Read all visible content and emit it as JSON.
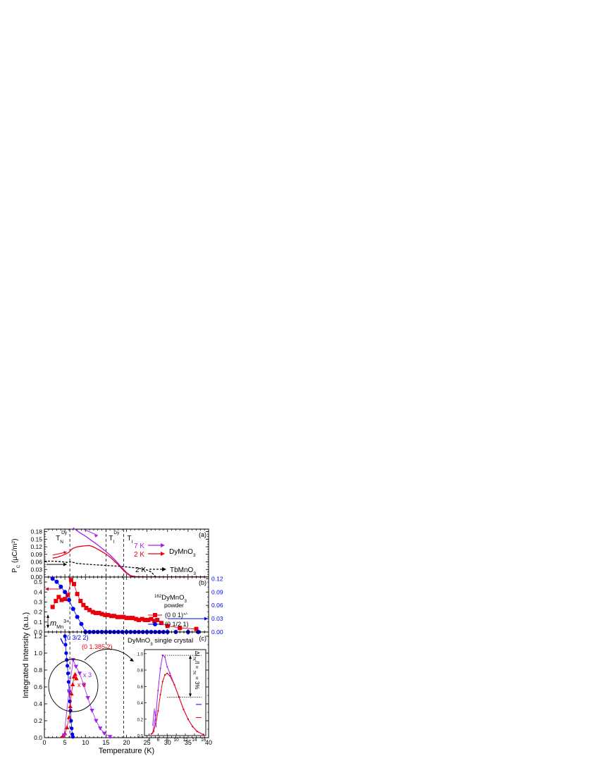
{
  "chart_data": [
    {
      "panel": "(a)",
      "type": "line",
      "ylabel": "P_C (μC/m²)",
      "ylim": [
        0,
        0.19
      ],
      "xlim": [
        0,
        40
      ],
      "yticks": [
        "0.00",
        "0.03",
        "0.06",
        "0.09",
        "0.12",
        "0.15",
        "0.18"
      ],
      "transition_labels": [
        {
          "main": "T",
          "sup": "Dy",
          "sub": "N",
          "x": 6.2
        },
        {
          "main": "T",
          "sup": "Dy",
          "sub": "I",
          "x": 15.0
        },
        {
          "main": "T",
          "sup": "",
          "sub": "I",
          "x": 19.3
        }
      ],
      "legend": [
        {
          "temp": "7 K",
          "compound": "DyMnO3",
          "color": "#a020f0"
        },
        {
          "temp": "2 K",
          "compound": "",
          "color": "#e8000b"
        },
        {
          "temp": "2 K",
          "compound": "TbMnO3",
          "color": "#000000",
          "dashed": true
        }
      ],
      "series": [
        {
          "name": "7 K",
          "color": "#a020f0",
          "x": [
            7.0,
            8.0,
            9.0,
            10.0,
            11.0,
            12.0,
            13.0,
            14.0,
            15.0,
            16.0,
            17.0,
            18.0,
            19.0,
            20.0,
            21.0,
            22.0,
            23.0,
            25.0,
            30.0,
            40.0
          ],
          "y": [
            0.195,
            0.183,
            0.172,
            0.162,
            0.15,
            0.139,
            0.127,
            0.114,
            0.101,
            0.087,
            0.071,
            0.053,
            0.035,
            0.018,
            0.006,
            0.002,
            0.001,
            0.0005,
            0.0003,
            0.0003
          ]
        },
        {
          "name": "2 K",
          "color": "#e8000b",
          "x": [
            2.0,
            3.0,
            4.0,
            5.0,
            6.0,
            6.5,
            7.0,
            8.0,
            9.0,
            10.0,
            11.0,
            12.0,
            13.0,
            14.0,
            15.0,
            16.0,
            17.0,
            18.0,
            19.0,
            20.0,
            21.0,
            22.0,
            25.0,
            30.0,
            40.0
          ],
          "y": [
            0.075,
            0.078,
            0.083,
            0.09,
            0.098,
            0.108,
            0.114,
            0.12,
            0.122,
            0.124,
            0.125,
            0.119,
            0.11,
            0.101,
            0.091,
            0.079,
            0.064,
            0.048,
            0.031,
            0.015,
            0.004,
            0.001,
            0.0003,
            0.0003,
            0.0003
          ]
        },
        {
          "name": "2 K TbMnO3",
          "color": "#000000",
          "x": [
            0.0,
            2.0,
            4.0,
            5.5,
            6.5,
            7.0,
            8.0,
            10.0,
            12.0,
            14.0,
            16.0,
            18.0,
            20.0,
            22.0,
            24.0,
            25.0,
            26.0,
            26.7,
            27.0
          ],
          "y": [
            0.063,
            0.063,
            0.061,
            0.058,
            0.06,
            0.058,
            0.054,
            0.051,
            0.049,
            0.047,
            0.045,
            0.043,
            0.04,
            0.037,
            0.032,
            0.028,
            0.02,
            0.008,
            0.002
          ]
        }
      ]
    },
    {
      "panel": "(b)",
      "type": "scatter",
      "ylim_left": [
        0,
        0.55
      ],
      "ylim_right": [
        0,
        0.1238
      ],
      "yticks_left": [
        "0.0",
        "0.1",
        "0.2",
        "0.3",
        "0.4",
        "0.5"
      ],
      "yticks_right": [
        "0.00",
        "0.03",
        "0.06",
        "0.09",
        "0.12"
      ],
      "annotation_title_sup": "162",
      "annotation_title": "DyMnO",
      "annotation_title_sub": "3",
      "annotation_subtitle": "powder",
      "moment_label": "m",
      "moment_sub": "Mn",
      "moment_sup": "3+",
      "series": [
        {
          "name": "(0 0 1)",
          "name_sup": "+/-",
          "color": "#e8000b",
          "marker": "square",
          "axis": "left",
          "x": [
            2.0,
            2.8,
            3.5,
            4.2,
            5.0,
            5.7,
            6.5,
            7.2,
            8.0,
            8.8,
            9.5,
            10.2,
            11.0,
            11.8,
            12.5,
            13.3,
            14.0,
            14.8,
            15.5,
            16.3,
            17.0,
            17.8,
            18.5,
            19.3,
            20.0,
            20.8,
            21.5,
            22.3,
            23.0,
            23.8,
            24.5,
            25.3,
            26.0,
            26.8,
            27.5,
            28.5,
            30.0,
            33.0,
            37.0
          ],
          "y": [
            0.25,
            0.31,
            0.35,
            0.32,
            0.33,
            0.37,
            0.52,
            0.48,
            0.38,
            0.31,
            0.27,
            0.24,
            0.22,
            0.2,
            0.19,
            0.19,
            0.18,
            0.17,
            0.17,
            0.16,
            0.16,
            0.15,
            0.15,
            0.15,
            0.14,
            0.14,
            0.14,
            0.13,
            0.12,
            0.13,
            0.12,
            0.12,
            0.13,
            0.11,
            0.12,
            0.09,
            0.06,
            0.04,
            0.03
          ]
        },
        {
          "name": "(0 1/2 1)",
          "name_sup": "",
          "color": "#0000ee",
          "marker": "circle",
          "axis": "right",
          "x": [
            2.0,
            3.0,
            4.0,
            5.0,
            6.0,
            7.0,
            8.0,
            9.0,
            10.0,
            11.0,
            12.0,
            13.0,
            14.0,
            15.0,
            16.0,
            17.0,
            18.0,
            19.0,
            20.0,
            21.0,
            22.0,
            23.0,
            24.0,
            25.0,
            26.0,
            27.0,
            28.0,
            29.0,
            30.0,
            32.0,
            35.0,
            37.5
          ],
          "y": [
            0.12,
            0.113,
            0.102,
            0.09,
            0.072,
            0.052,
            0.034,
            0.018,
            0.0,
            0.0,
            0.0,
            0.0,
            0.0,
            0.0,
            0.0,
            0.0,
            0.0,
            0.0,
            0.0,
            0.0,
            0.0,
            0.0,
            0.0,
            0.0,
            0.0,
            0.0,
            0.0,
            0.0,
            0.0,
            0.0,
            0.0,
            0.0
          ]
        }
      ]
    },
    {
      "panel": "(c)",
      "type": "scatter",
      "ylim": [
        0,
        1.25
      ],
      "yticks": [
        "0.0",
        "0.2",
        "0.4",
        "0.6",
        "0.8",
        "1.0",
        "1.2"
      ],
      "xlabel": "Temperature (K)",
      "xticks": [
        "0",
        "5",
        "10",
        "15",
        "20",
        "25",
        "30",
        "35",
        "40"
      ],
      "annotation_title": "DyMnO",
      "annotation_title_sub": "3",
      "annotation_subtitle": " single crystal",
      "multiplier_labels": [
        "x 3",
        "x 3"
      ],
      "series": [
        {
          "name": "(0 3/2 2)",
          "color": "#0000ee",
          "marker": "circle",
          "x": [
            5.0,
            5.15,
            5.3,
            5.45,
            5.6,
            5.75,
            5.9,
            6.05,
            6.2,
            6.35,
            6.5,
            6.65,
            6.8,
            6.95
          ],
          "y": [
            1.2,
            1.1,
            1.0,
            0.92,
            0.85,
            0.76,
            0.66,
            0.55,
            0.43,
            0.32,
            0.2,
            0.11,
            0.04,
            0.01
          ]
        },
        {
          "name": "(0 1.385 2)",
          "color": "#e8000b",
          "marker": "triangle",
          "x": [
            4.5,
            5.0,
            5.5,
            6.0,
            6.3,
            6.6,
            6.9,
            7.2,
            7.5,
            7.8
          ],
          "y": [
            0.02,
            0.05,
            0.12,
            0.24,
            0.37,
            0.52,
            0.63,
            0.72,
            0.75,
            0.7
          ]
        },
        {
          "name": "purple",
          "color": "#a020f0",
          "marker": "triangle-down",
          "x": [
            4.8,
            6.0,
            7.0,
            7.7,
            8.6,
            9.6,
            10.6,
            11.6,
            12.6,
            13.6,
            14.6,
            16.0
          ],
          "y": [
            0.03,
            0.55,
            0.92,
            0.84,
            0.76,
            0.62,
            0.47,
            0.32,
            0.2,
            0.11,
            0.05,
            0.01
          ]
        }
      ],
      "inset": {
        "xlim": [
          3,
          16.5
        ],
        "ylim": [
          0,
          1.05
        ],
        "xticks": [
          "4",
          "6",
          "8",
          "10",
          "12",
          "14",
          "16"
        ],
        "yticks": [
          "0.0",
          "0.2",
          "0.4",
          "0.6",
          "0.8",
          "1.0"
        ],
        "label_main": "ΔI",
        "label_rest": "/I = 3%",
        "label_sub": "7K",
        "label_sup": "7K",
        "series": [
          {
            "name": "purple",
            "color": "#a020f0",
            "x": [
              4.8,
              5.5,
              6.0,
              6.5,
              7.0,
              7.5,
              8.0,
              8.6,
              9.6,
              10.6,
              11.6,
              12.6,
              13.6,
              14.6,
              16.0
            ],
            "y": [
              0.03,
              0.25,
              0.55,
              0.82,
              0.98,
              0.96,
              0.84,
              0.76,
              0.62,
              0.47,
              0.32,
              0.2,
              0.11,
              0.05,
              0.01
            ]
          },
          {
            "name": "red",
            "color": "#e8000b",
            "x": [
              4.5,
              5.0,
              5.5,
              6.0,
              6.5,
              7.0,
              7.5,
              8.0,
              8.6,
              9.6,
              10.6,
              11.6,
              12.6,
              13.6,
              14.6,
              16.0
            ],
            "y": [
              0.02,
              0.05,
              0.15,
              0.3,
              0.5,
              0.66,
              0.74,
              0.76,
              0.73,
              0.62,
              0.47,
              0.32,
              0.2,
              0.11,
              0.05,
              0.01
            ]
          }
        ]
      }
    }
  ],
  "ylabel_shared": "Integrated Intensity (a.u.)"
}
